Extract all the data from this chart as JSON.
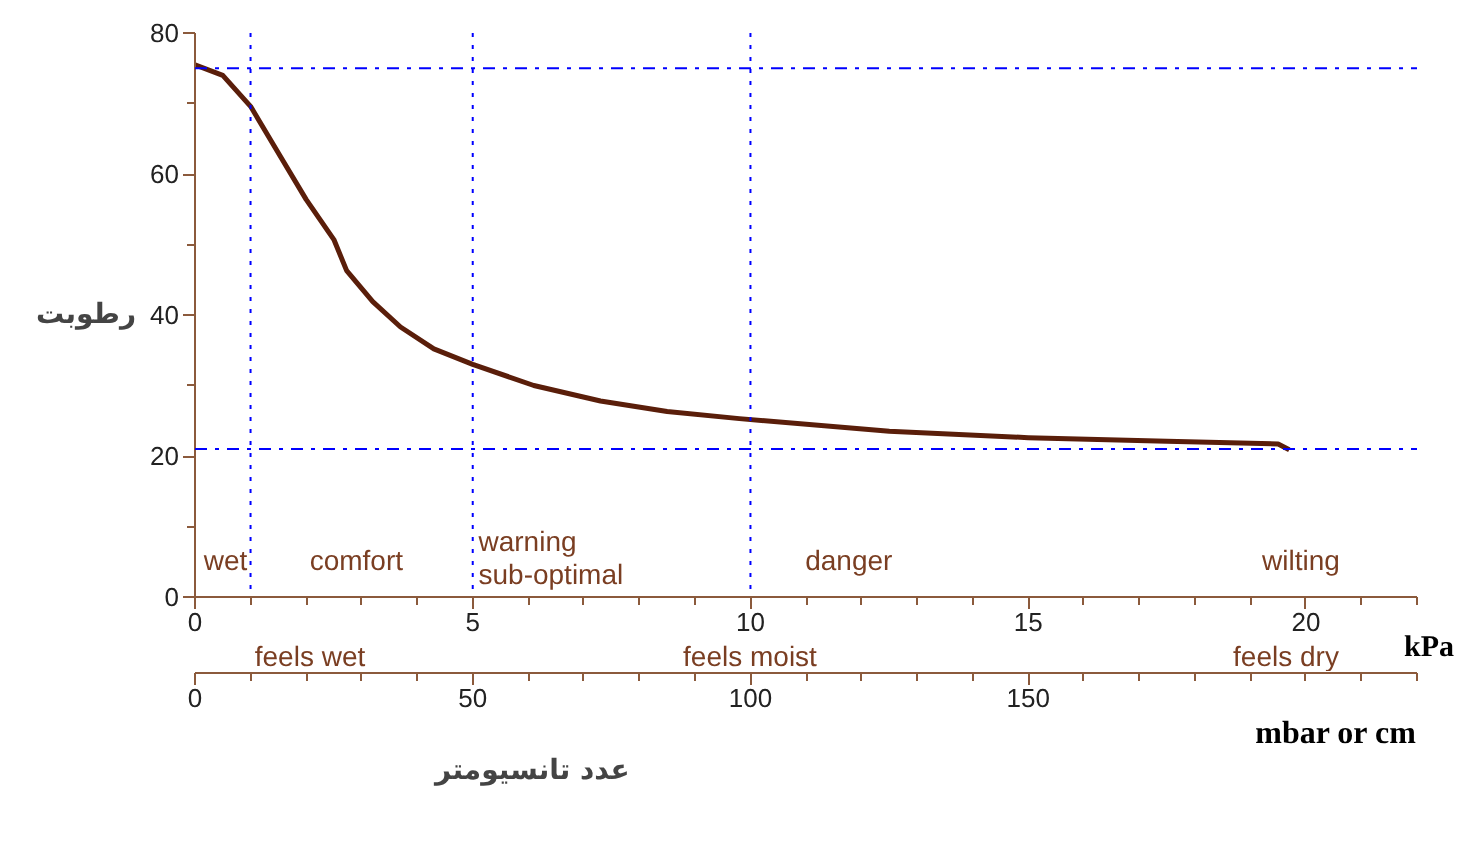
{
  "chart_data": {
    "type": "line",
    "ylabel": "رطوبت",
    "xlabel": "kPa",
    "x2label": "mbar or cm",
    "x": [
      0,
      0.5,
      1,
      1.53,
      2,
      2.5,
      2.73,
      3.2,
      3.7,
      4.3,
      5,
      6.1,
      7.3,
      8.5,
      9.8,
      12.5,
      15,
      17.5,
      19.5,
      19.7
    ],
    "series": [
      {
        "color": "#5a1e0a",
        "values": [
          75.5,
          74,
          69.6,
          62.6,
          56.4,
          50.7,
          46.3,
          41.9,
          38.3,
          35.2,
          33,
          30,
          27.8,
          26.3,
          25.3,
          23.5,
          22.6,
          22.1,
          21.7,
          20.9
        ]
      }
    ],
    "xlim": [
      0,
      22
    ],
    "xticks": [
      0,
      5,
      10,
      15,
      20
    ],
    "x2lim": [
      0,
      220
    ],
    "x2ticks": [
      0,
      50,
      100,
      150
    ],
    "ylim": [
      0,
      80
    ],
    "yticks": [
      0,
      20,
      40,
      60,
      80
    ],
    "grid": false,
    "marker": "none",
    "line_style": "solid",
    "ref_lines": [
      {
        "axis": "x",
        "value": 1,
        "color": "#0000ff",
        "line_style": "dotted"
      },
      {
        "axis": "x",
        "value": 5,
        "color": "#0000ff",
        "line_style": "dotted"
      },
      {
        "axis": "x",
        "value": 10,
        "color": "#0000ff",
        "line_style": "dotted"
      },
      {
        "axis": "y",
        "value": 75,
        "color": "#0000ff",
        "line_style": "dashdot"
      },
      {
        "axis": "y",
        "value": 21,
        "color": "#0000ff",
        "line_style": "dashdot"
      }
    ],
    "annotations": [
      "wet",
      "comfort",
      "warning",
      "sub-optimal",
      "danger",
      "wilting",
      "feels wet",
      "feels moist",
      "feels dry",
      "عدد تانسیومتر"
    ]
  }
}
